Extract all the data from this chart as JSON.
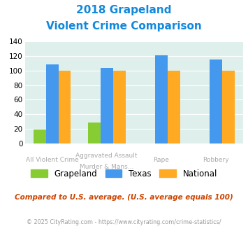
{
  "title_line1": "2018 Grapeland",
  "title_line2": "Violent Crime Comparison",
  "cat_labels_top": [
    "",
    "Aggravated Assault",
    "",
    ""
  ],
  "cat_labels_bot": [
    "All Violent Crime",
    "Murder & Mans...",
    "Rape",
    "Robbery"
  ],
  "grapeland": [
    19,
    29,
    0,
    0
  ],
  "texas": [
    109,
    104,
    121,
    115
  ],
  "national": [
    100,
    100,
    100,
    100
  ],
  "color_grapeland": "#88cc33",
  "color_texas": "#4499ee",
  "color_national": "#ffaa22",
  "bg_color": "#dff0ec",
  "ylim": [
    0,
    140
  ],
  "yticks": [
    0,
    20,
    40,
    60,
    80,
    100,
    120,
    140
  ],
  "subtitle_text": "Compared to U.S. average. (U.S. average equals 100)",
  "footer_text": "© 2025 CityRating.com - https://www.cityrating.com/crime-statistics/",
  "title_color": "#1188dd",
  "subtitle_color": "#cc4400",
  "footer_color": "#999999",
  "label_color": "#aaaaaa"
}
